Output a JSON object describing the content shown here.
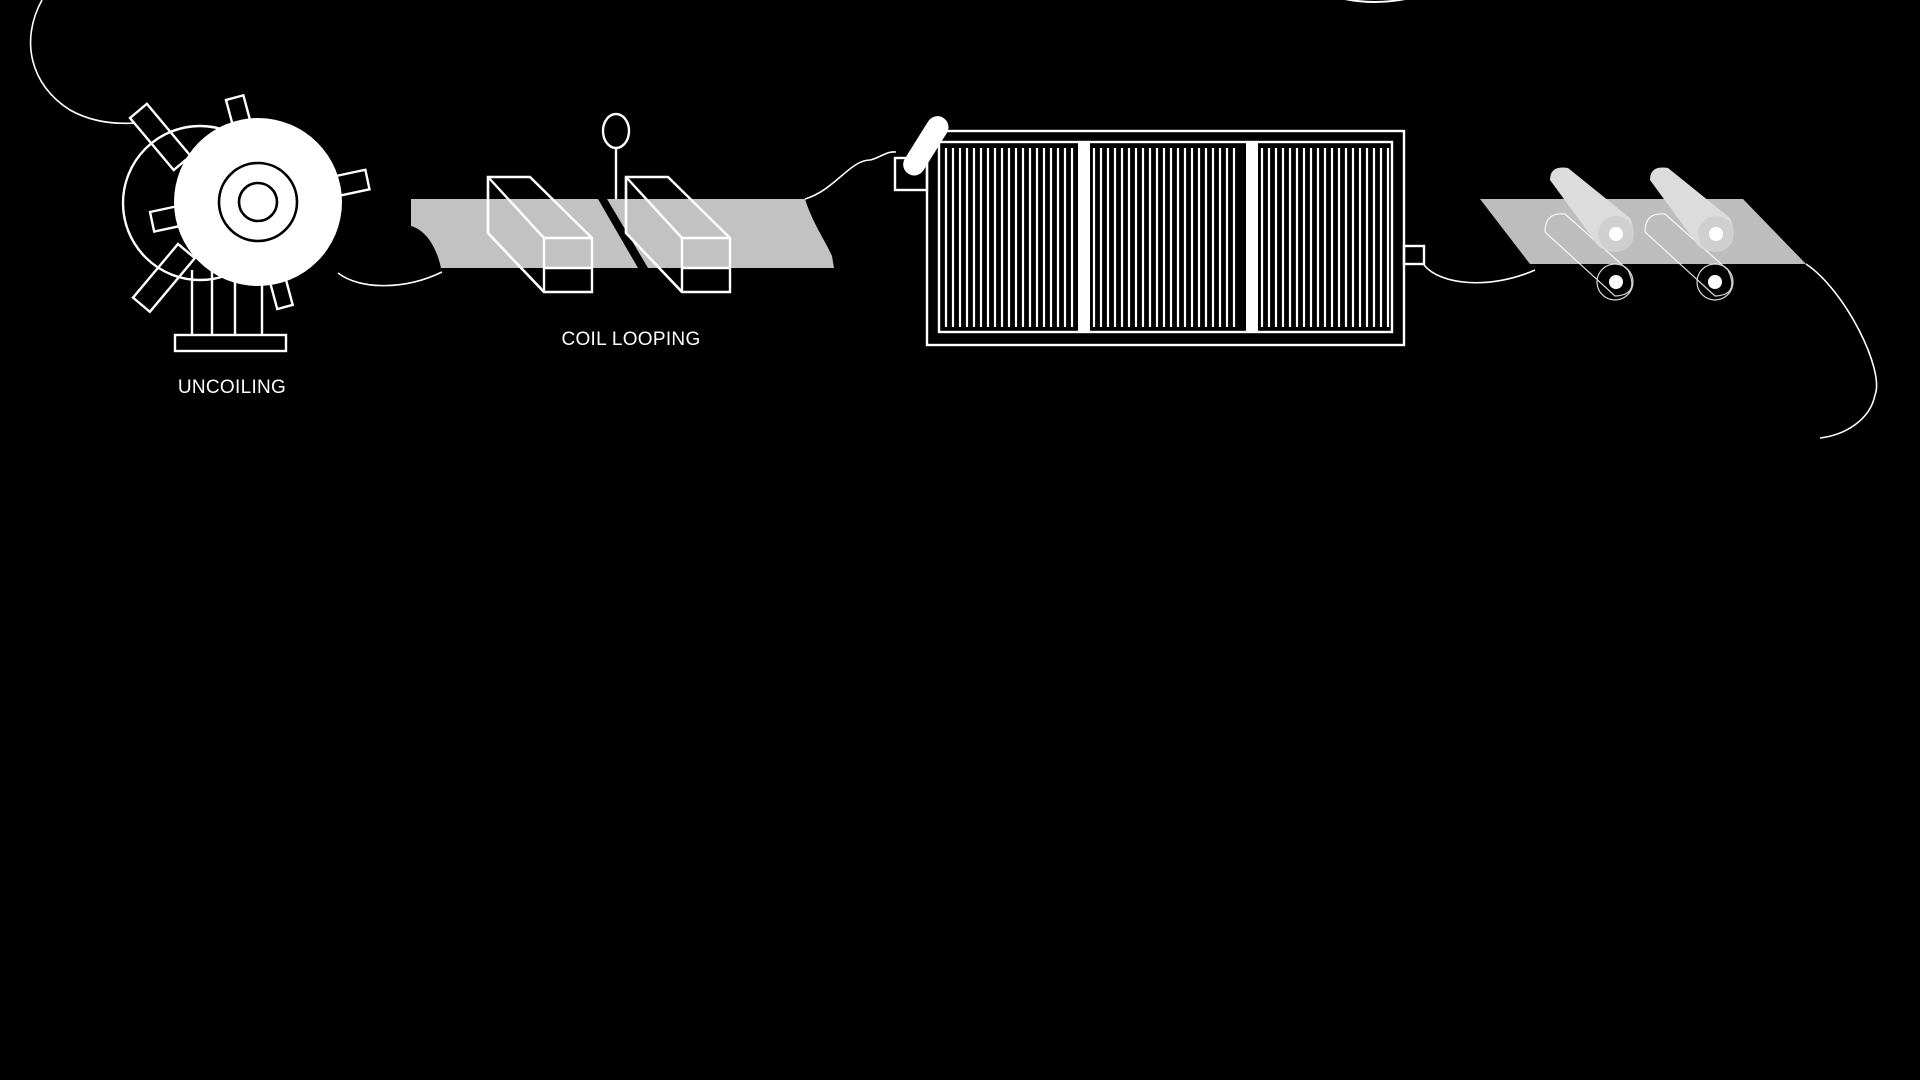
{
  "colors": {
    "background": "#000000",
    "line": "#ffffff",
    "strip": "#c2c2c2",
    "strip_light": "#bdbdbd",
    "roller": "#d9d9d9"
  },
  "labels": {
    "uncoiling": "UNCOILING",
    "coil_looping": "COIL LOOPING"
  }
}
